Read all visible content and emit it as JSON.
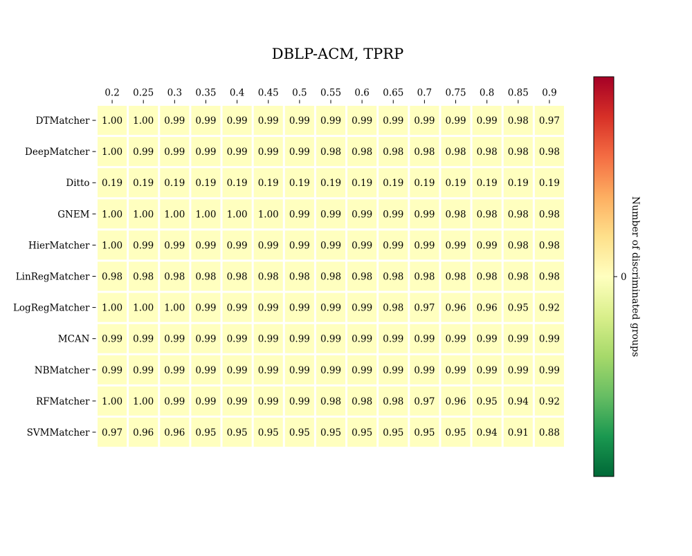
{
  "chart_data": {
    "type": "heatmap",
    "title": "DBLP-ACM, TPRP",
    "x_categories": [
      "0.2",
      "0.25",
      "0.3",
      "0.35",
      "0.4",
      "0.45",
      "0.5",
      "0.55",
      "0.6",
      "0.65",
      "0.7",
      "0.75",
      "0.8",
      "0.85",
      "0.9"
    ],
    "y_categories": [
      "DTMatcher",
      "DeepMatcher",
      "Ditto",
      "GNEM",
      "HierMatcher",
      "LinRegMatcher",
      "LogRegMatcher",
      "MCAN",
      "NBMatcher",
      "RFMatcher",
      "SVMMatcher"
    ],
    "cell_labels": [
      [
        "1.00",
        "1.00",
        "0.99",
        "0.99",
        "0.99",
        "0.99",
        "0.99",
        "0.99",
        "0.99",
        "0.99",
        "0.99",
        "0.99",
        "0.99",
        "0.98",
        "0.97"
      ],
      [
        "1.00",
        "0.99",
        "0.99",
        "0.99",
        "0.99",
        "0.99",
        "0.99",
        "0.98",
        "0.98",
        "0.98",
        "0.98",
        "0.98",
        "0.98",
        "0.98",
        "0.98"
      ],
      [
        "0.19",
        "0.19",
        "0.19",
        "0.19",
        "0.19",
        "0.19",
        "0.19",
        "0.19",
        "0.19",
        "0.19",
        "0.19",
        "0.19",
        "0.19",
        "0.19",
        "0.19"
      ],
      [
        "1.00",
        "1.00",
        "1.00",
        "1.00",
        "1.00",
        "1.00",
        "0.99",
        "0.99",
        "0.99",
        "0.99",
        "0.99",
        "0.98",
        "0.98",
        "0.98",
        "0.98"
      ],
      [
        "1.00",
        "0.99",
        "0.99",
        "0.99",
        "0.99",
        "0.99",
        "0.99",
        "0.99",
        "0.99",
        "0.99",
        "0.99",
        "0.99",
        "0.99",
        "0.98",
        "0.98"
      ],
      [
        "0.98",
        "0.98",
        "0.98",
        "0.98",
        "0.98",
        "0.98",
        "0.98",
        "0.98",
        "0.98",
        "0.98",
        "0.98",
        "0.98",
        "0.98",
        "0.98",
        "0.98"
      ],
      [
        "1.00",
        "1.00",
        "1.00",
        "0.99",
        "0.99",
        "0.99",
        "0.99",
        "0.99",
        "0.99",
        "0.98",
        "0.97",
        "0.96",
        "0.96",
        "0.95",
        "0.92"
      ],
      [
        "0.99",
        "0.99",
        "0.99",
        "0.99",
        "0.99",
        "0.99",
        "0.99",
        "0.99",
        "0.99",
        "0.99",
        "0.99",
        "0.99",
        "0.99",
        "0.99",
        "0.99"
      ],
      [
        "0.99",
        "0.99",
        "0.99",
        "0.99",
        "0.99",
        "0.99",
        "0.99",
        "0.99",
        "0.99",
        "0.99",
        "0.99",
        "0.99",
        "0.99",
        "0.99",
        "0.99"
      ],
      [
        "1.00",
        "1.00",
        "0.99",
        "0.99",
        "0.99",
        "0.99",
        "0.99",
        "0.98",
        "0.98",
        "0.98",
        "0.97",
        "0.96",
        "0.95",
        "0.94",
        "0.92"
      ],
      [
        "0.97",
        "0.96",
        "0.96",
        "0.95",
        "0.95",
        "0.95",
        "0.95",
        "0.95",
        "0.95",
        "0.95",
        "0.95",
        "0.95",
        "0.94",
        "0.91",
        "0.88"
      ]
    ],
    "color_values": [
      [
        0,
        0,
        0,
        0,
        0,
        0,
        0,
        0,
        0,
        0,
        0,
        0,
        0,
        0,
        0
      ],
      [
        0,
        0,
        0,
        0,
        0,
        0,
        0,
        0,
        0,
        0,
        0,
        0,
        0,
        0,
        0
      ],
      [
        0,
        0,
        0,
        0,
        0,
        0,
        0,
        0,
        0,
        0,
        0,
        0,
        0,
        0,
        0
      ],
      [
        0,
        0,
        0,
        0,
        0,
        0,
        0,
        0,
        0,
        0,
        0,
        0,
        0,
        0,
        0
      ],
      [
        0,
        0,
        0,
        0,
        0,
        0,
        0,
        0,
        0,
        0,
        0,
        0,
        0,
        0,
        0
      ],
      [
        0,
        0,
        0,
        0,
        0,
        0,
        0,
        0,
        0,
        0,
        0,
        0,
        0,
        0,
        0
      ],
      [
        0,
        0,
        0,
        0,
        0,
        0,
        0,
        0,
        0,
        0,
        0,
        0,
        0,
        0,
        0
      ],
      [
        0,
        0,
        0,
        0,
        0,
        0,
        0,
        0,
        0,
        0,
        0,
        0,
        0,
        0,
        0
      ],
      [
        0,
        0,
        0,
        0,
        0,
        0,
        0,
        0,
        0,
        0,
        0,
        0,
        0,
        0,
        0
      ],
      [
        0,
        0,
        0,
        0,
        0,
        0,
        0,
        0,
        0,
        0,
        0,
        0,
        0,
        0,
        0
      ],
      [
        0,
        0,
        0,
        0,
        0,
        0,
        0,
        0,
        0,
        0,
        0,
        0,
        0,
        0,
        0
      ]
    ],
    "cell_color": "#ffffbf",
    "colorbar": {
      "label": "Number of discriminated groups",
      "ticks": [
        "0"
      ],
      "colormap": "RdYlGn reversed",
      "stops": [
        "#006837",
        "#1a9850",
        "#66bd63",
        "#a6d96a",
        "#d9ef8b",
        "#ffffbf",
        "#fee08b",
        "#fdae61",
        "#f46d43",
        "#d73027",
        "#a50026"
      ]
    },
    "grid": false,
    "x_axis_position": "top"
  }
}
